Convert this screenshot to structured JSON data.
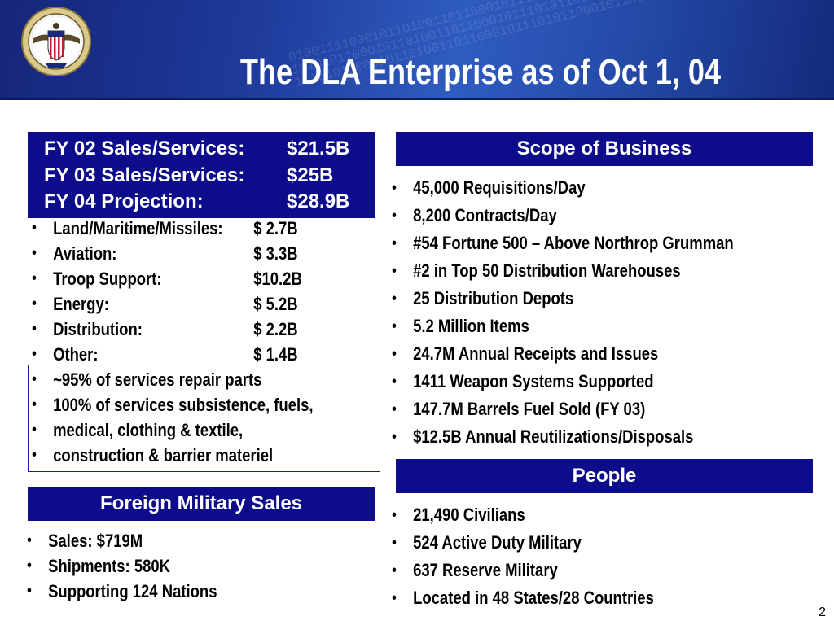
{
  "header": {
    "title": "The DLA Enterprise as of Oct 1, 04",
    "binary_text": "0100111100010110100110110001011101011000101101001101100010111010110001011010011011000101110101100010110100110110001011101011000101101001101100010111010110001011010011"
  },
  "sales": {
    "rows": [
      {
        "label": "FY 02 Sales/Services:",
        "value": "$21.5B"
      },
      {
        "label": "FY 03 Sales/Services:",
        "value": "$25B"
      },
      {
        "label": "FY 04 Projection:",
        "value": "$28.9B"
      }
    ],
    "breakdown": [
      {
        "label": "Land/Maritime/Missiles:",
        "value": "$ 2.7B"
      },
      {
        "label": "Aviation:",
        "value": "$ 3.3B"
      },
      {
        "label": "Troop Support:",
        "value": "$10.2B"
      },
      {
        "label": "Energy:",
        "value": "$ 5.2B"
      },
      {
        "label": "Distribution:",
        "value": "$ 2.2B"
      },
      {
        "label": "Other:",
        "value": "$ 1.4B"
      }
    ],
    "services": [
      {
        "lines": [
          "~95% of services repair parts"
        ]
      },
      {
        "lines": [
          "100% of services subsistence, fuels,",
          "medical, clothing & textile,",
          "construction & barrier materiel"
        ]
      }
    ]
  },
  "fms": {
    "title": "Foreign Military Sales",
    "items": [
      "Sales: $719M",
      "Shipments: 580K",
      "Supporting 124 Nations"
    ]
  },
  "scope": {
    "title": "Scope of Business",
    "items": [
      "45,000 Requisitions/Day",
      "8,200 Contracts/Day",
      "#54 Fortune 500 – Above Northrop Grumman",
      "#2 in Top 50 Distribution Warehouses",
      "25 Distribution Depots",
      "5.2 Million Items",
      "24.7M Annual Receipts and Issues",
      "1411 Weapon Systems Supported",
      "147.7M Barrels Fuel Sold (FY 03)",
      "$12.5B Annual Reutilizations/Disposals"
    ]
  },
  "people": {
    "title": "People",
    "items": [
      "21,490 Civilians",
      "524 Active Duty Military",
      "637 Reserve Military",
      "Located in 48 States/28 Countries"
    ]
  },
  "page_number": "2",
  "colors": {
    "banner": "#0d0d8c",
    "header_dark": "#16257a",
    "header_light": "#2f5cc0",
    "box_border": "#1a1a9a"
  }
}
